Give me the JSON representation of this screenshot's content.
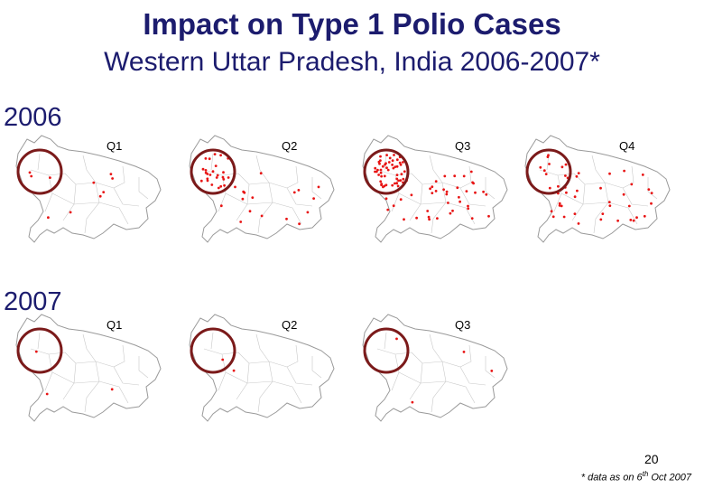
{
  "title": "Impact on Type 1 Polio Cases",
  "subtitle": "Western Uttar Pradesh, India 2006-2007*",
  "rows": [
    {
      "year": "2006",
      "panels": [
        {
          "quarter": "Q1",
          "cases": 10
        },
        {
          "quarter": "Q2",
          "cases": 42
        },
        {
          "quarter": "Q3",
          "cases": 90
        },
        {
          "quarter": "Q4",
          "cases": 46
        }
      ]
    },
    {
      "year": "2007",
      "panels": [
        {
          "quarter": "Q1",
          "cases": 3
        },
        {
          "quarter": "Q2",
          "cases": 2
        },
        {
          "quarter": "Q3",
          "cases": 4
        }
      ]
    }
  ],
  "page_number": "20",
  "footnote": {
    "prefix": "* data as on 6",
    "sup": "th",
    "suffix": " Oct 2007"
  },
  "colors": {
    "title": "#1c1c6e",
    "case_dot": "#e81414",
    "ring": "#7b1a1a",
    "border": "#9a9a9a"
  }
}
